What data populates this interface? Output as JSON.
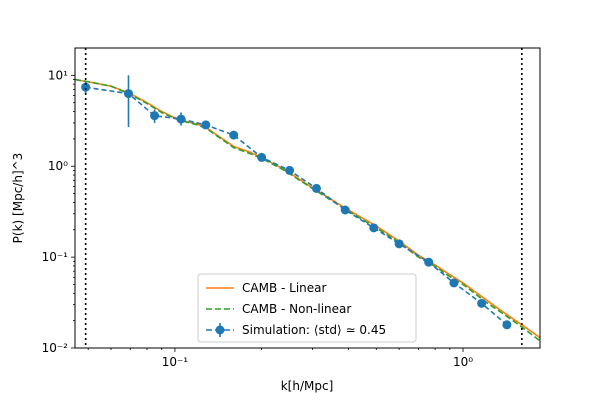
{
  "chart_data": {
    "type": "line",
    "xlabel": "k[h/Mpc]",
    "ylabel": "P(k) [Mpc/h]^3",
    "x_scale": "log",
    "y_scale": "log",
    "xlim": [
      0.045,
      1.85
    ],
    "ylim": [
      0.01,
      20
    ],
    "grid": false,
    "legend_position": "bottom-center",
    "x_ticks": [
      {
        "value": 0.1,
        "label": "10⁻¹"
      },
      {
        "value": 1,
        "label": "10⁰"
      }
    ],
    "y_ticks": [
      {
        "value": 0.01,
        "label": "10⁻²"
      },
      {
        "value": 0.1,
        "label": "10⁻¹"
      },
      {
        "value": 1,
        "label": "10⁰"
      },
      {
        "value": 10,
        "label": "10¹"
      }
    ],
    "vlines": [
      0.049,
      1.6
    ],
    "series": [
      {
        "name": "CAMB - Linear",
        "color": "#ff7f0e",
        "style": "solid",
        "x": [
          0.045,
          0.05,
          0.06,
          0.07,
          0.08,
          0.09,
          0.1,
          0.11,
          0.12,
          0.13,
          0.14,
          0.15,
          0.16,
          0.18,
          0.2,
          0.24,
          0.3,
          0.4,
          0.5,
          0.6,
          0.7,
          0.8,
          0.9,
          1.0,
          1.2,
          1.4,
          1.6,
          1.85
        ],
        "y": [
          9.0,
          8.5,
          7.6,
          6.3,
          5.0,
          4.0,
          3.4,
          3.1,
          2.9,
          2.6,
          2.2,
          1.9,
          1.65,
          1.45,
          1.25,
          0.92,
          0.58,
          0.33,
          0.22,
          0.15,
          0.105,
          0.082,
          0.064,
          0.052,
          0.034,
          0.024,
          0.018,
          0.013
        ]
      },
      {
        "name": "CAMB - Non-linear",
        "color": "#2ca02c",
        "style": "dashed",
        "x": [
          0.045,
          0.05,
          0.06,
          0.07,
          0.08,
          0.09,
          0.1,
          0.11,
          0.12,
          0.13,
          0.14,
          0.15,
          0.16,
          0.18,
          0.2,
          0.24,
          0.3,
          0.4,
          0.5,
          0.6,
          0.7,
          0.8,
          0.9,
          1.0,
          1.2,
          1.4,
          1.6,
          1.85
        ],
        "y": [
          9.0,
          8.5,
          7.6,
          6.2,
          4.9,
          3.9,
          3.35,
          3.05,
          2.85,
          2.55,
          2.15,
          1.85,
          1.6,
          1.4,
          1.22,
          0.9,
          0.57,
          0.32,
          0.21,
          0.145,
          0.1,
          0.079,
          0.061,
          0.05,
          0.032,
          0.023,
          0.017,
          0.012
        ]
      },
      {
        "name": "Simulation: ⟨std⟩ ≃ 0.45",
        "color": "#1f77b4",
        "style": "dashed-markers",
        "x": [
          0.049,
          0.069,
          0.085,
          0.105,
          0.128,
          0.16,
          0.2,
          0.25,
          0.31,
          0.39,
          0.49,
          0.6,
          0.76,
          0.93,
          1.16,
          1.42
        ],
        "y": [
          7.4,
          6.3,
          3.6,
          3.3,
          2.85,
          2.2,
          1.25,
          0.9,
          0.57,
          0.33,
          0.21,
          0.14,
          0.088,
          0.052,
          0.031,
          0.018
        ],
        "err_low": [
          6.3,
          2.7,
          3.0,
          2.8,
          2.6,
          2.0,
          1.18,
          0.86,
          0.55,
          0.32,
          0.205,
          0.137,
          0.086,
          0.051,
          0.0305,
          0.0178
        ],
        "err_high": [
          8.6,
          10.0,
          4.2,
          3.9,
          3.1,
          2.4,
          1.32,
          0.94,
          0.59,
          0.34,
          0.215,
          0.143,
          0.09,
          0.053,
          0.0315,
          0.0182
        ]
      }
    ]
  }
}
